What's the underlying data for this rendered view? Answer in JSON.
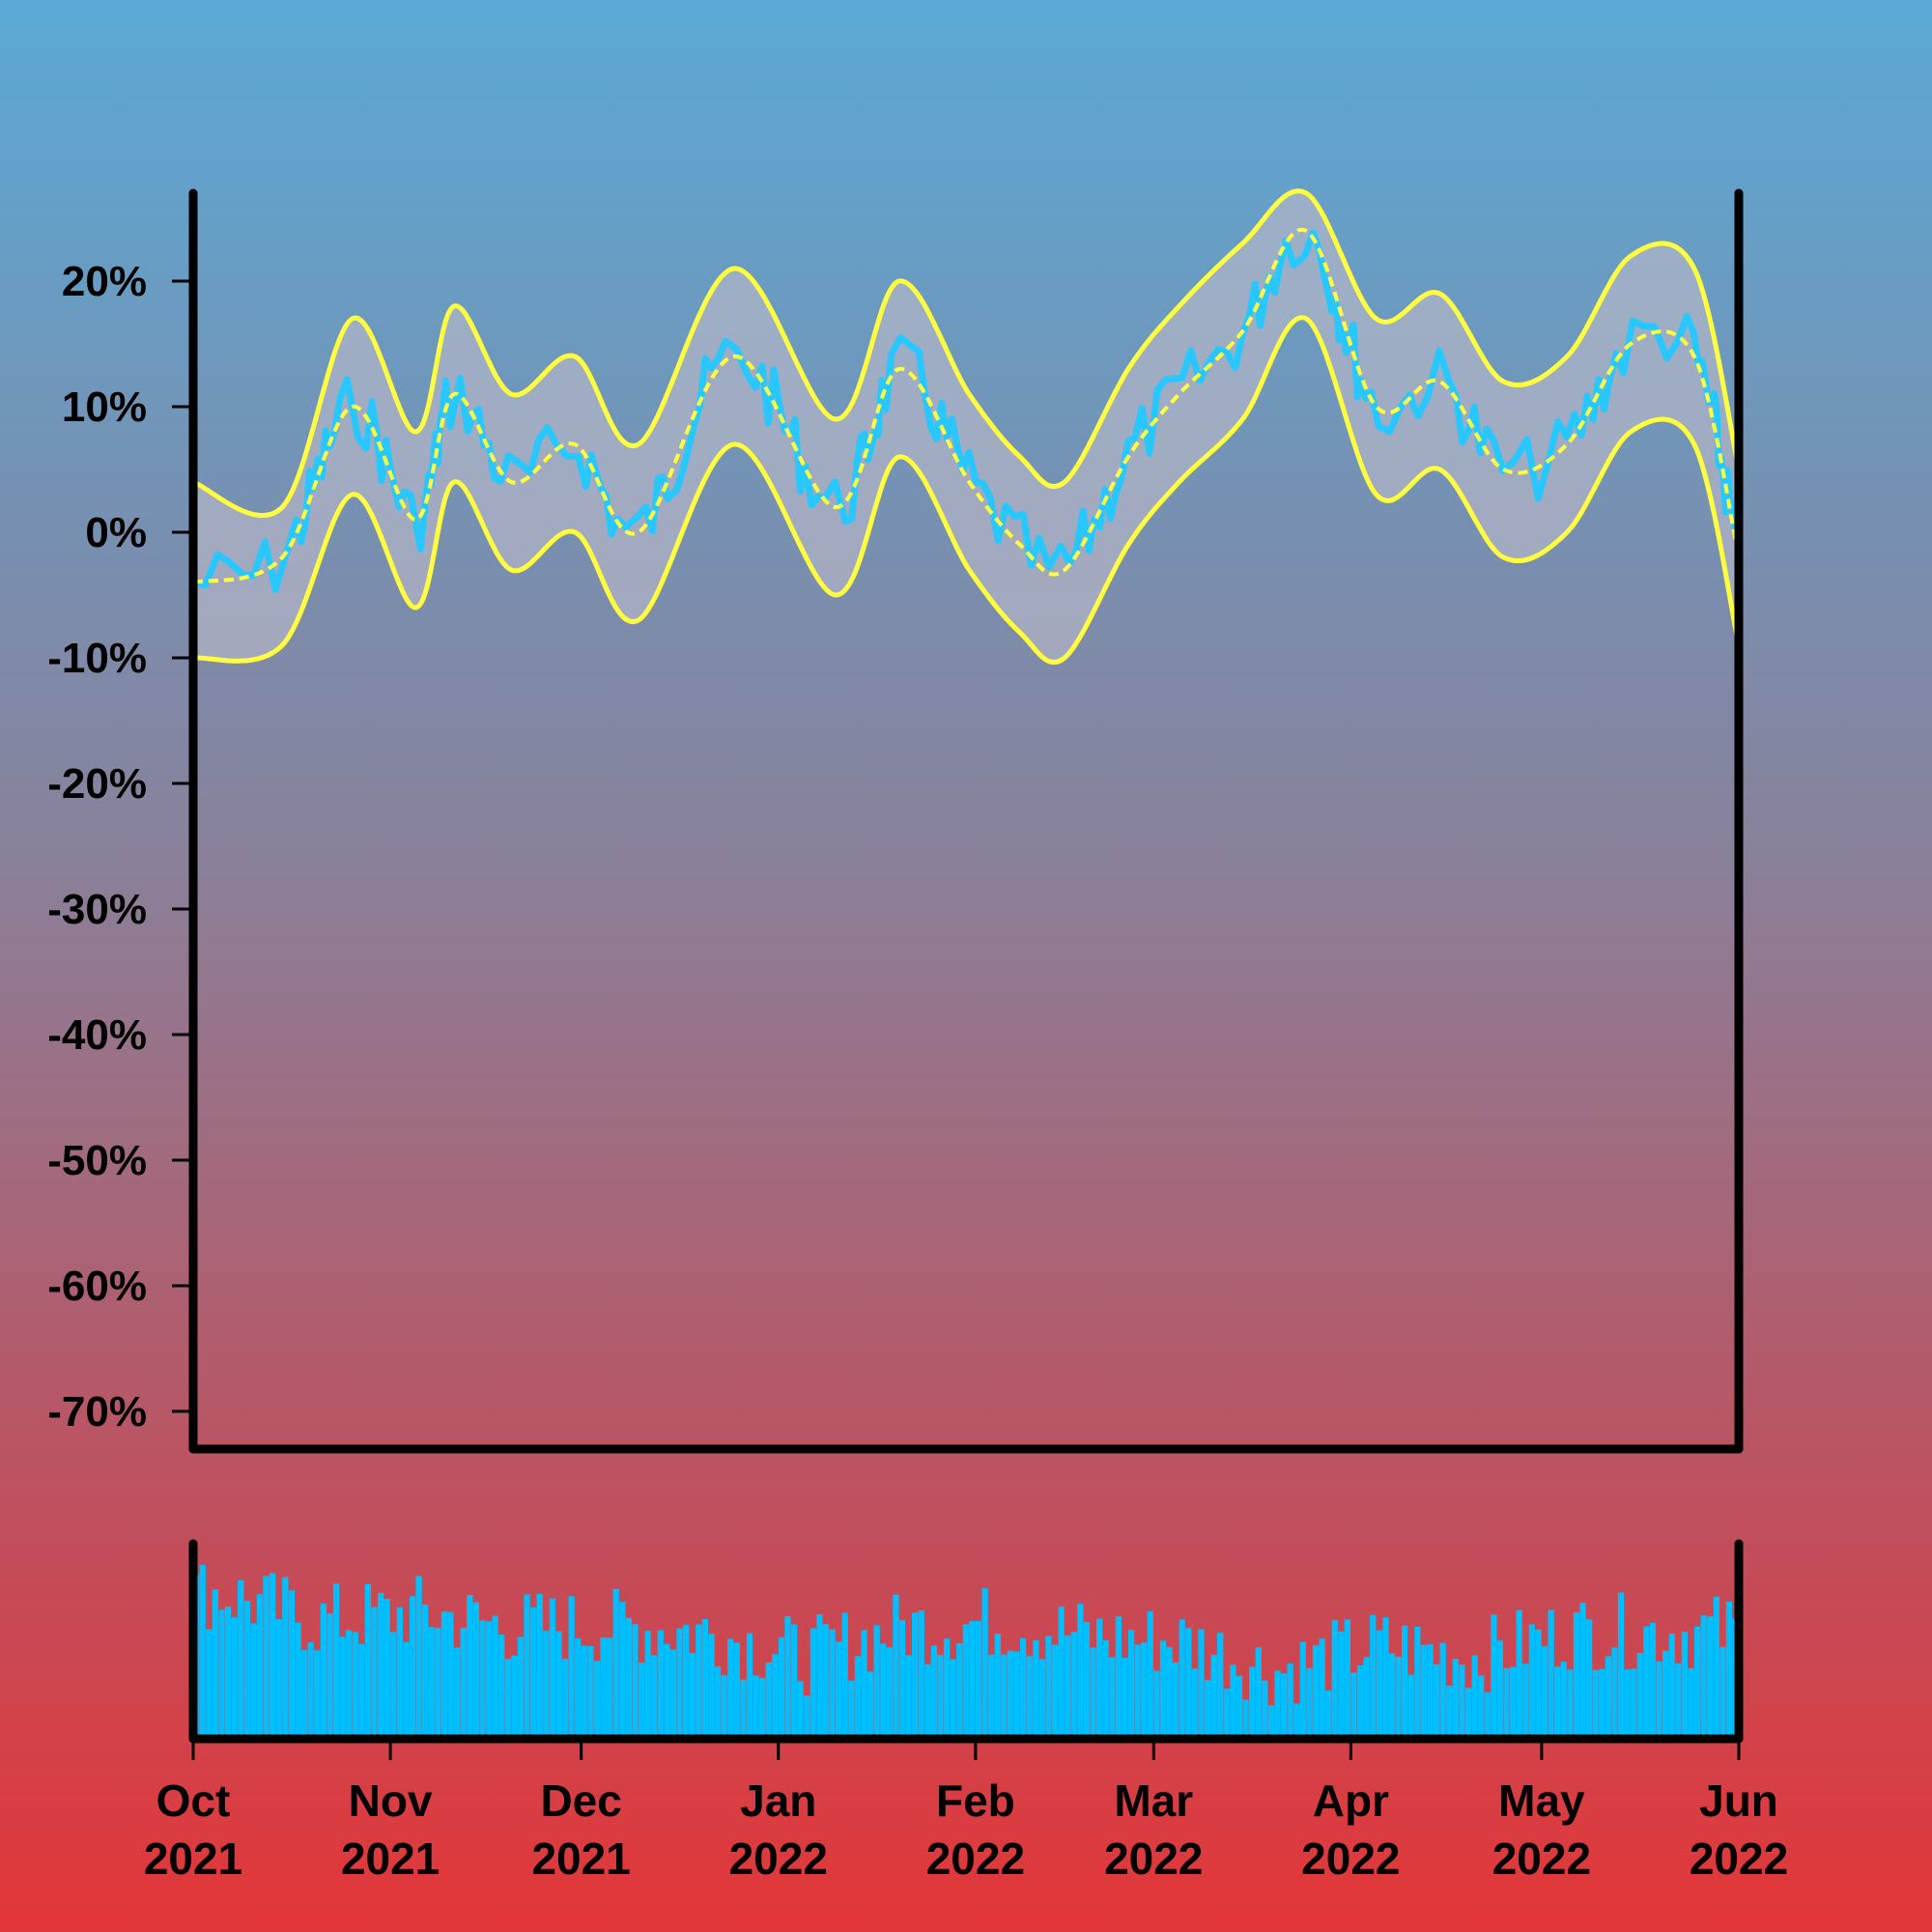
{
  "chart_data": [
    {
      "type": "line",
      "title": "",
      "xlabel": "",
      "ylabel": "",
      "xlim": [
        "2021-10-01",
        "2022-06-01"
      ],
      "ylim": [
        -73,
        27
      ],
      "yticks": [
        20,
        10,
        0,
        -10,
        -20,
        -30,
        -40,
        -50,
        -60,
        -70
      ],
      "ytick_labels": [
        "20%",
        "10%",
        "0%",
        "-10%",
        "-20%",
        "-30%",
        "-40%",
        "-50%",
        "-60%",
        "-70%"
      ],
      "grid": false,
      "colors": {
        "series": "#29c7ff",
        "band_line": "#ffff40",
        "band_fill": "#b8b8c8",
        "axis": "#000000"
      },
      "series": [
        {
          "x": [
            "2021-10-01",
            "2021-10-15",
            "2021-10-26",
            "2021-11-05",
            "2021-11-11",
            "2021-11-20",
            "2021-11-30",
            "2021-12-10",
            "2021-12-25",
            "2022-01-10",
            "2022-01-20",
            "2022-01-31",
            "2022-02-08",
            "2022-02-15",
            "2022-02-25",
            "2022-03-05",
            "2022-03-15",
            "2022-03-25",
            "2022-04-05",
            "2022-04-15",
            "2022-04-25",
            "2022-05-05",
            "2022-05-15",
            "2022-05-25",
            "2022-06-01"
          ],
          "values": [
            -4,
            -2,
            10,
            1,
            11,
            4,
            7,
            0,
            14,
            2,
            13,
            4,
            -1,
            -3,
            6,
            11,
            16,
            24,
            10,
            12,
            5,
            7,
            15,
            14,
            -2
          ]
        },
        {
          "x": [
            "2021-10-01",
            "2021-10-15",
            "2021-10-26",
            "2021-11-05",
            "2021-11-11",
            "2021-11-20",
            "2021-11-30",
            "2021-12-10",
            "2021-12-25",
            "2022-01-10",
            "2022-01-20",
            "2022-01-31",
            "2022-02-08",
            "2022-02-15",
            "2022-02-25",
            "2022-03-05",
            "2022-03-15",
            "2022-03-25",
            "2022-04-05",
            "2022-04-15",
            "2022-04-25",
            "2022-05-05",
            "2022-05-15",
            "2022-05-25",
            "2022-06-01"
          ],
          "values": [
            4,
            2,
            17,
            8,
            18,
            11,
            14,
            7,
            21,
            9,
            20,
            11,
            6,
            4,
            13,
            18,
            23,
            27,
            17,
            19,
            12,
            14,
            22,
            21,
            5
          ]
        },
        {
          "x": [
            "2021-10-01",
            "2021-10-15",
            "2021-10-26",
            "2021-11-05",
            "2021-11-11",
            "2021-11-20",
            "2021-11-30",
            "2021-12-10",
            "2021-12-25",
            "2022-01-10",
            "2022-01-20",
            "2022-01-31",
            "2022-02-08",
            "2022-02-15",
            "2022-02-25",
            "2022-03-05",
            "2022-03-15",
            "2022-03-25",
            "2022-04-05",
            "2022-04-15",
            "2022-04-25",
            "2022-05-05",
            "2022-05-15",
            "2022-05-25",
            "2022-06-01"
          ],
          "values": [
            -10,
            -9,
            3,
            -6,
            4,
            -3,
            0,
            -7,
            7,
            -5,
            6,
            -3,
            -8,
            -10,
            -1,
            4,
            9,
            17,
            3,
            5,
            -2,
            0,
            8,
            7,
            -9
          ]
        }
      ]
    },
    {
      "type": "bar",
      "xlim": [
        "2021-10-01",
        "2022-06-01"
      ],
      "x_tick_labels": [
        [
          "Oct",
          "2021"
        ],
        [
          "Nov",
          "2021"
        ],
        [
          "Dec",
          "2021"
        ],
        [
          "Jan",
          "2022"
        ],
        [
          "Feb",
          "2022"
        ],
        [
          "Mar",
          "2022"
        ],
        [
          "Apr",
          "2022"
        ],
        [
          "May",
          "2022"
        ],
        [
          "Jun",
          "2022"
        ]
      ],
      "colors": {
        "bars": "#00bfff",
        "axis": "#000000"
      },
      "x": [
        "2021-10-05",
        "2021-10-20",
        "2021-11-05",
        "2021-11-20",
        "2021-12-05",
        "2021-12-20",
        "2022-01-05",
        "2022-01-20",
        "2022-02-05",
        "2022-02-20",
        "2022-03-05",
        "2022-03-20",
        "2022-04-05",
        "2022-04-20",
        "2022-05-05",
        "2022-05-20"
      ],
      "values": [
        75,
        60,
        65,
        57,
        58,
        55,
        42,
        57,
        60,
        52,
        50,
        35,
        48,
        42,
        55,
        55
      ]
    }
  ]
}
